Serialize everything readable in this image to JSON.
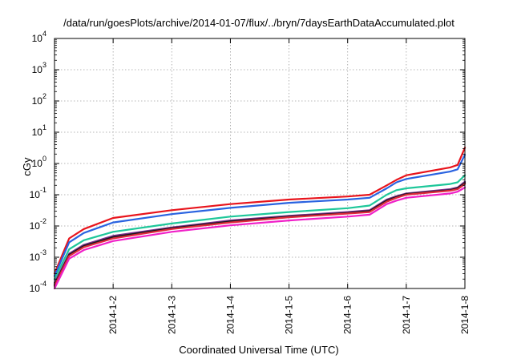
{
  "chart_data": {
    "type": "line",
    "title": "/data/run/goesPlots/archive/2014-01-07/flux/../bryn/7daysEarthDataAccumulated.plot",
    "xlabel": "Coordinated Universal Time (UTC)",
    "ylabel": "cGy",
    "y_scale": "log",
    "ylim": [
      0.0001,
      10000
    ],
    "xlim": [
      "2014-1-1",
      "2014-1-8"
    ],
    "grid": true,
    "x_ticks": [
      "2014-1-2",
      "2014-1-3",
      "2014-1-4",
      "2014-1-5",
      "2014-1-6",
      "2014-1-7",
      "2014-1-8"
    ],
    "y_ticks": [
      {
        "value": 0.0001,
        "base": "10",
        "exp": "-4"
      },
      {
        "value": 0.001,
        "base": "10",
        "exp": "-3"
      },
      {
        "value": 0.01,
        "base": "10",
        "exp": "-2"
      },
      {
        "value": 0.1,
        "base": "10",
        "exp": "-1"
      },
      {
        "value": 1,
        "base": "10",
        "exp": "0"
      },
      {
        "value": 10,
        "base": "10",
        "exp": "1"
      },
      {
        "value": 100,
        "base": "10",
        "exp": "2"
      },
      {
        "value": 1000,
        "base": "10",
        "exp": "3"
      },
      {
        "value": 10000,
        "base": "10",
        "exp": "4"
      }
    ],
    "series": [
      {
        "color": "#e8141c",
        "points": [
          [
            "2014-1-1",
            0.0003
          ],
          [
            "2014-1-1 06:00",
            0.004
          ],
          [
            "2014-1-1 12:00",
            0.008
          ],
          [
            "2014-1-2",
            0.018
          ],
          [
            "2014-1-3",
            0.032
          ],
          [
            "2014-1-4",
            0.05
          ],
          [
            "2014-1-5",
            0.07
          ],
          [
            "2014-1-6",
            0.088
          ],
          [
            "2014-1-6 09:00",
            0.1
          ],
          [
            "2014-1-6 16:00",
            0.2
          ],
          [
            "2014-1-6 20:00",
            0.3
          ],
          [
            "2014-1-7",
            0.42
          ],
          [
            "2014-1-7 18:00",
            0.75
          ],
          [
            "2014-1-7 21:00",
            0.9
          ],
          [
            "2014-1-8",
            3.2
          ]
        ]
      },
      {
        "color": "#2a63e0",
        "points": [
          [
            "2014-1-1",
            0.00025
          ],
          [
            "2014-1-1 06:00",
            0.003
          ],
          [
            "2014-1-1 12:00",
            0.006
          ],
          [
            "2014-1-2",
            0.013
          ],
          [
            "2014-1-3",
            0.024
          ],
          [
            "2014-1-4",
            0.038
          ],
          [
            "2014-1-5",
            0.055
          ],
          [
            "2014-1-6",
            0.07
          ],
          [
            "2014-1-6 09:00",
            0.08
          ],
          [
            "2014-1-6 16:00",
            0.16
          ],
          [
            "2014-1-6 20:00",
            0.25
          ],
          [
            "2014-1-7",
            0.32
          ],
          [
            "2014-1-7 18:00",
            0.55
          ],
          [
            "2014-1-7 21:00",
            0.65
          ],
          [
            "2014-1-8",
            1.9
          ]
        ]
      },
      {
        "color": "#1ec79a",
        "points": [
          [
            "2014-1-1",
            0.0002
          ],
          [
            "2014-1-1 06:00",
            0.0018
          ],
          [
            "2014-1-1 12:00",
            0.0035
          ],
          [
            "2014-1-2",
            0.0065
          ],
          [
            "2014-1-3",
            0.012
          ],
          [
            "2014-1-4",
            0.02
          ],
          [
            "2014-1-5",
            0.028
          ],
          [
            "2014-1-6",
            0.037
          ],
          [
            "2014-1-6 09:00",
            0.045
          ],
          [
            "2014-1-6 16:00",
            0.1
          ],
          [
            "2014-1-6 20:00",
            0.14
          ],
          [
            "2014-1-7",
            0.16
          ],
          [
            "2014-1-7 18:00",
            0.22
          ],
          [
            "2014-1-7 21:00",
            0.25
          ],
          [
            "2014-1-8",
            0.42
          ]
        ]
      },
      {
        "color": "#7a2a8c",
        "points": [
          [
            "2014-1-1",
            0.00015
          ],
          [
            "2014-1-1 06:00",
            0.0013
          ],
          [
            "2014-1-1 12:00",
            0.0025
          ],
          [
            "2014-1-2",
            0.0048
          ],
          [
            "2014-1-3",
            0.009
          ],
          [
            "2014-1-4",
            0.015
          ],
          [
            "2014-1-5",
            0.021
          ],
          [
            "2014-1-6",
            0.028
          ],
          [
            "2014-1-6 09:00",
            0.032
          ],
          [
            "2014-1-6 16:00",
            0.07
          ],
          [
            "2014-1-6 20:00",
            0.09
          ],
          [
            "2014-1-7",
            0.11
          ],
          [
            "2014-1-7 18:00",
            0.15
          ],
          [
            "2014-1-7 21:00",
            0.17
          ],
          [
            "2014-1-8",
            0.26
          ]
        ]
      },
      {
        "color": "#1a1a1a",
        "points": [
          [
            "2014-1-1",
            0.00013
          ],
          [
            "2014-1-1 06:00",
            0.0012
          ],
          [
            "2014-1-1 12:00",
            0.0023
          ],
          [
            "2014-1-2",
            0.0044
          ],
          [
            "2014-1-3",
            0.0085
          ],
          [
            "2014-1-4",
            0.014
          ],
          [
            "2014-1-5",
            0.02
          ],
          [
            "2014-1-6",
            0.026
          ],
          [
            "2014-1-6 09:00",
            0.03
          ],
          [
            "2014-1-6 16:00",
            0.065
          ],
          [
            "2014-1-6 20:00",
            0.085
          ],
          [
            "2014-1-7",
            0.105
          ],
          [
            "2014-1-7 18:00",
            0.14
          ],
          [
            "2014-1-7 21:00",
            0.16
          ],
          [
            "2014-1-8",
            0.24
          ]
        ]
      },
      {
        "color": "#e0283c",
        "points": [
          [
            "2014-1-1",
            0.00012
          ],
          [
            "2014-1-1 06:00",
            0.0011
          ],
          [
            "2014-1-1 12:00",
            0.0021
          ],
          [
            "2014-1-2",
            0.004
          ],
          [
            "2014-1-3",
            0.008
          ],
          [
            "2014-1-4",
            0.013
          ],
          [
            "2014-1-5",
            0.019
          ],
          [
            "2014-1-6",
            0.025
          ],
          [
            "2014-1-6 09:00",
            0.028
          ],
          [
            "2014-1-6 16:00",
            0.06
          ],
          [
            "2014-1-6 20:00",
            0.08
          ],
          [
            "2014-1-7",
            0.1
          ],
          [
            "2014-1-7 18:00",
            0.135
          ],
          [
            "2014-1-7 21:00",
            0.15
          ],
          [
            "2014-1-8",
            0.22
          ]
        ]
      },
      {
        "color": "#f020c8",
        "points": [
          [
            "2014-1-1",
            0.0001
          ],
          [
            "2014-1-1 06:00",
            0.0009
          ],
          [
            "2014-1-1 12:00",
            0.0017
          ],
          [
            "2014-1-2",
            0.0033
          ],
          [
            "2014-1-3",
            0.0065
          ],
          [
            "2014-1-4",
            0.0105
          ],
          [
            "2014-1-5",
            0.015
          ],
          [
            "2014-1-6",
            0.02
          ],
          [
            "2014-1-6 09:00",
            0.023
          ],
          [
            "2014-1-6 16:00",
            0.05
          ],
          [
            "2014-1-6 20:00",
            0.065
          ],
          [
            "2014-1-7",
            0.08
          ],
          [
            "2014-1-7 18:00",
            0.11
          ],
          [
            "2014-1-7 21:00",
            0.125
          ],
          [
            "2014-1-8",
            0.17
          ]
        ]
      }
    ]
  }
}
